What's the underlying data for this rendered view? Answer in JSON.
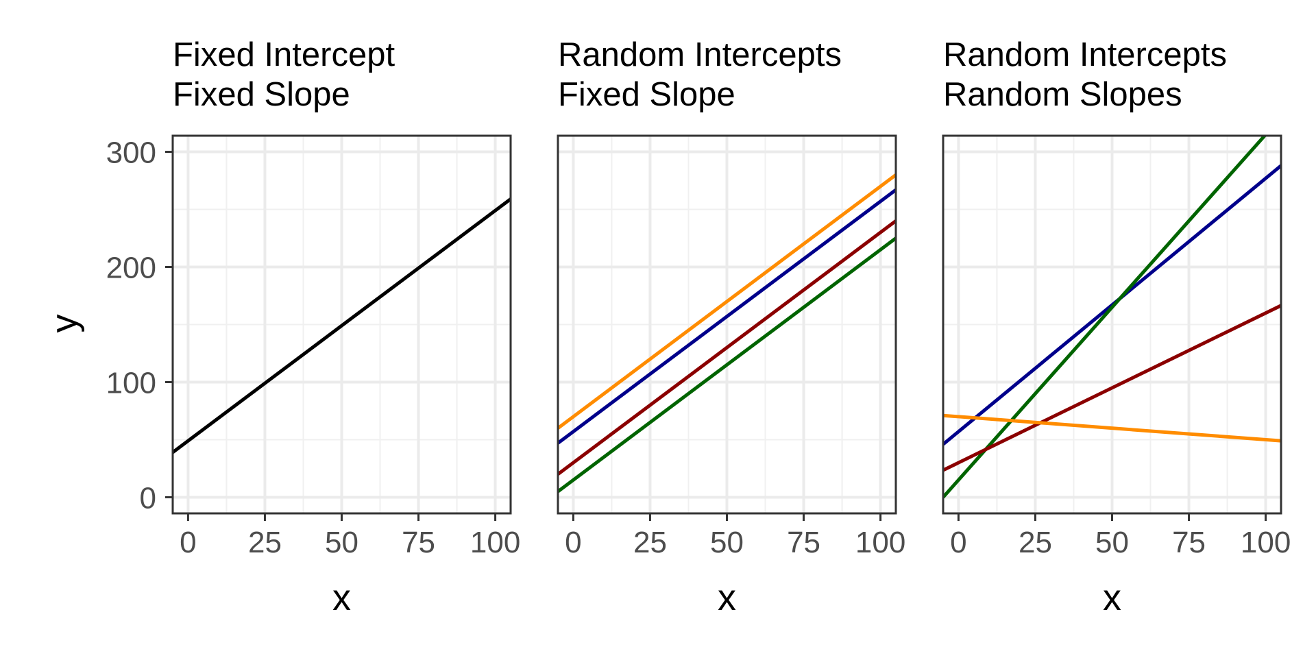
{
  "chart_data": [
    {
      "type": "line",
      "title_line1": "Fixed Intercept",
      "title_line2": "Fixed Slope",
      "xlabel": "x",
      "ylabel": "y",
      "xlim": [
        -5,
        105
      ],
      "ylim": [
        -14,
        314
      ],
      "x_ticks": [
        0,
        25,
        50,
        75,
        100
      ],
      "y_ticks": [
        0,
        100,
        200,
        300
      ],
      "x_tick_labels": [
        "0",
        "25",
        "50",
        "75",
        "100"
      ],
      "y_tick_labels": [
        "0",
        "100",
        "200",
        "300"
      ],
      "series": [
        {
          "name": "black",
          "color": "#000000",
          "intercept": 49,
          "slope": 2.0
        }
      ]
    },
    {
      "type": "line",
      "title_line1": "Random Intercepts",
      "title_line2": "Fixed Slope",
      "xlabel": "x",
      "ylabel": "y",
      "xlim": [
        -5,
        105
      ],
      "ylim": [
        -14,
        314
      ],
      "x_ticks": [
        0,
        25,
        50,
        75,
        100
      ],
      "y_ticks": [
        0,
        100,
        200,
        300
      ],
      "x_tick_labels": [
        "0",
        "25",
        "50",
        "75",
        "100"
      ],
      "y_tick_labels": [
        "0",
        "100",
        "200",
        "300"
      ],
      "series": [
        {
          "name": "orange",
          "color": "#FF8C00",
          "intercept": 70,
          "slope": 2.0
        },
        {
          "name": "navy",
          "color": "#00008B",
          "intercept": 57,
          "slope": 2.0
        },
        {
          "name": "darkred",
          "color": "#8B0000",
          "intercept": 30,
          "slope": 2.0
        },
        {
          "name": "darkgreen",
          "color": "#006400",
          "intercept": 15,
          "slope": 2.0
        }
      ]
    },
    {
      "type": "line",
      "title_line1": "Random Intercepts",
      "title_line2": "Random Slopes",
      "xlabel": "x",
      "ylabel": "y",
      "xlim": [
        -5,
        105
      ],
      "ylim": [
        -14,
        314
      ],
      "x_ticks": [
        0,
        25,
        50,
        75,
        100
      ],
      "y_ticks": [
        0,
        100,
        200,
        300
      ],
      "x_tick_labels": [
        "0",
        "25",
        "50",
        "75",
        "100"
      ],
      "y_tick_labels": [
        "0",
        "100",
        "200",
        "300"
      ],
      "series": [
        {
          "name": "navy",
          "color": "#00008B",
          "intercept": 57,
          "slope": 2.2
        },
        {
          "name": "darkgreen",
          "color": "#006400",
          "intercept": 15,
          "slope": 3.0
        },
        {
          "name": "darkred",
          "color": "#8B0000",
          "intercept": 30,
          "slope": 1.3
        },
        {
          "name": "orange",
          "color": "#FF8C00",
          "intercept": 70,
          "slope": -0.2
        }
      ]
    }
  ]
}
